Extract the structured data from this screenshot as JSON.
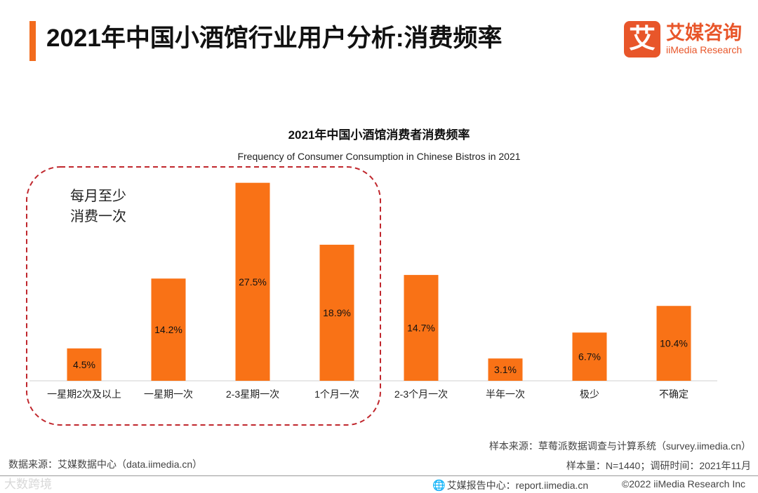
{
  "header": {
    "title": "2021年中国小酒馆行业用户分析:消费频率",
    "logo_mark": "艾",
    "logo_cn": "艾媒咨询",
    "logo_en": "iiMedia Research"
  },
  "chart_data": {
    "type": "bar",
    "title": "2021年中国小酒馆消费者消费频率",
    "subtitle": "Frequency of Consumer Consumption in Chinese Bistros in 2021",
    "categories": [
      "一星期2次及以上",
      "一星期一次",
      "2-3星期一次",
      "1个月一次",
      "2-3个月一次",
      "半年一次",
      "极少",
      "不确定"
    ],
    "values": [
      4.5,
      14.2,
      27.5,
      18.9,
      14.7,
      3.1,
      6.7,
      10.4
    ],
    "value_suffix": "%",
    "ylim": [
      0,
      30
    ],
    "xlabel": "",
    "ylabel": "",
    "grid": false,
    "bar_color": "#f97216",
    "annotation": {
      "lines": [
        "每月至少",
        "消费一次"
      ],
      "covers_categories": [
        "一星期2次及以上",
        "一星期一次",
        "2-3星期一次",
        "1个月一次"
      ],
      "color": "#c0272d"
    }
  },
  "sources": {
    "data_source": "数据来源：艾媒数据中心（data.iimedia.cn）",
    "sample_source": "样本来源：草莓派数据调查与计算系统（survey.iimedia.cn）",
    "sample_size": "样本量：N=1440；调研时间：2021年11月"
  },
  "footer": {
    "report_center": "艾媒报告中心：report.iimedia.cn",
    "copyright": "©2022  iiMedia Research  Inc",
    "watermark": "大数跨境"
  }
}
